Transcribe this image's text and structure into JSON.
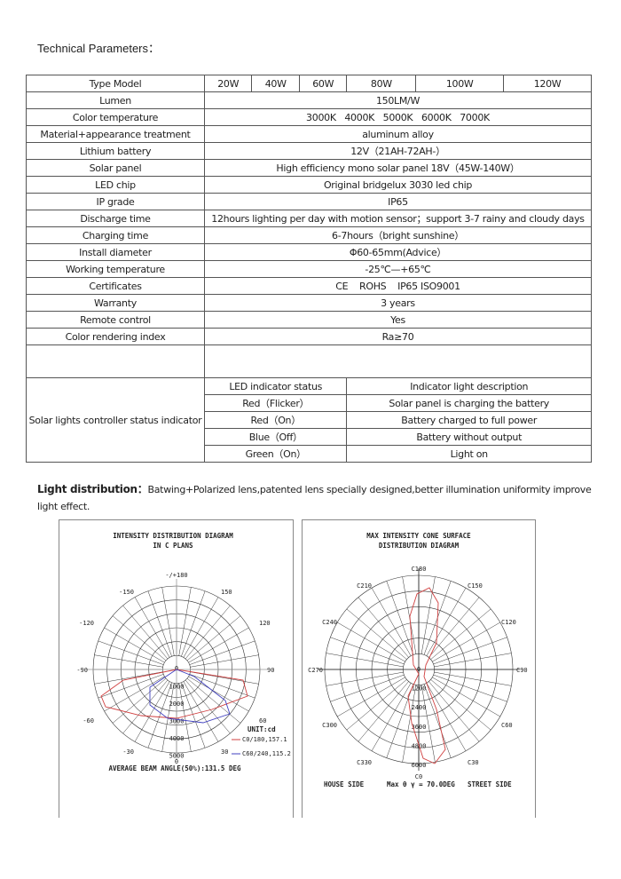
{
  "title": "Technical Parameters：",
  "table": {
    "header": {
      "label": "Type Model",
      "models": [
        "20W",
        "40W",
        "60W",
        "80W",
        "100W",
        "120W"
      ]
    },
    "rows": [
      {
        "label": "Lumen",
        "value": "150LM/W"
      },
      {
        "label": "Color temperature",
        "value": "3000K   4000K   5000K   6000K   7000K"
      },
      {
        "label": "Material+appearance treatment",
        "value": "aluminum alloy"
      },
      {
        "label": "Lithium battery",
        "value": "12V（21AH-72AH-）"
      },
      {
        "label": "Solar panel",
        "value": "High efficiency mono solar panel 18V（45W-140W）"
      },
      {
        "label": "LED chip",
        "value": "Original bridgelux 3030 led chip"
      },
      {
        "label": "IP grade",
        "value": "IP65"
      },
      {
        "label": "Discharge time",
        "value": "12hours lighting per day with motion sensor；support 3-7 rainy and cloudy days"
      },
      {
        "label": "Charging time",
        "value": "6-7hours（bright sunshine）"
      },
      {
        "label": "Install diameter",
        "value": "Φ60-65mm(Advice）"
      },
      {
        "label": "Working temperature",
        "value": "-25℃—+65℃"
      },
      {
        "label": "Certificates",
        "value": "CE    ROHS    IP65 ISO9001"
      },
      {
        "label": "Warranty",
        "value": "3 years"
      },
      {
        "label": "Remote control",
        "value": "Yes"
      },
      {
        "label": "Color rendering index",
        "value": "Ra≥70"
      }
    ],
    "controller": {
      "label": "Solar lights controller status indicator",
      "col_status": "LED indicator status",
      "col_desc": "Indicator light description",
      "items": [
        {
          "status": "Red（Flicker）",
          "desc": "Solar panel is charging the battery"
        },
        {
          "status": "Red（On）",
          "desc": "Battery charged to full power"
        },
        {
          "status": "Blue（Off）",
          "desc": "Battery without output"
        },
        {
          "status": "Green（On）",
          "desc": "Light on"
        }
      ]
    }
  },
  "light_distribution": {
    "heading": "Light distribution：",
    "text": "Batwing+Polarized lens,patented lens specially designed,better illumination uniformity improve light effect."
  },
  "diagram_left": {
    "title1": "INTENSITY DISTRIBUTION DIAGRAM",
    "title2": "IN C PLANS",
    "angle_labels": [
      "-/+180",
      "-150",
      "150",
      "-120",
      "120",
      "-90",
      "90",
      "-60",
      "60",
      "-30",
      "30",
      "0"
    ],
    "ring_labels": [
      "0",
      "1000",
      "2000",
      "3000",
      "4000",
      "5000"
    ],
    "unit": "UNIT:cd",
    "legend": [
      {
        "label": "C0/180,157.1",
        "color": "#d04040"
      },
      {
        "label": "C60/240,115.2",
        "color": "#4040c0"
      }
    ],
    "footer": "AVERAGE BEAM ANGLE(50%):131.5 DEG"
  },
  "diagram_right": {
    "title1": "MAX INTENSITY CONE SURFACE",
    "title2": "DISTRIBUTION DIAGRAM",
    "angle_labels": [
      "C180",
      "C210",
      "C150",
      "C240",
      "C120",
      "C270",
      "C90",
      "C300",
      "C60",
      "C330",
      "C30",
      "C0"
    ],
    "ring_labels": [
      "0",
      "1200",
      "2400",
      "3600",
      "4800",
      "6000"
    ],
    "house_side": "HOUSE SIDE",
    "max_text": "Max θ γ = 70.0DEG",
    "street_side": "STREET SIDE",
    "curve_color": "#d04040"
  }
}
